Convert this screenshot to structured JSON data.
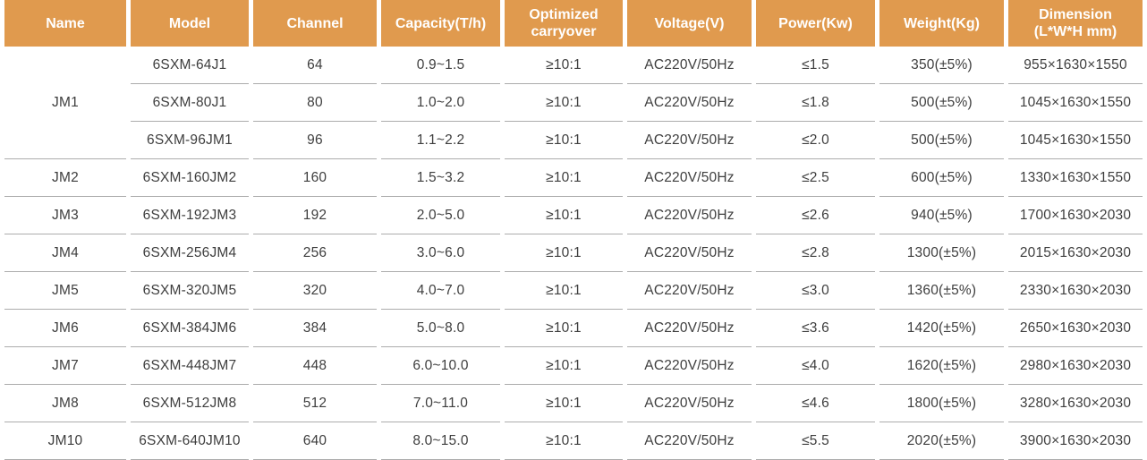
{
  "colors": {
    "header_bg": "#E09A4E",
    "header_text": "#FFFFFF",
    "body_text": "#3E3E3E",
    "row_separator": "#ACACAC",
    "background": "#FFFFFF"
  },
  "table": {
    "columns": [
      {
        "key": "name",
        "label": "Name"
      },
      {
        "key": "model",
        "label": "Model"
      },
      {
        "key": "channel",
        "label": "Channel"
      },
      {
        "key": "capacity",
        "label": "Capacity(T/h)"
      },
      {
        "key": "carryover",
        "label": "Optimized\ncarryover"
      },
      {
        "key": "voltage",
        "label": "Voltage(V)"
      },
      {
        "key": "power",
        "label": "Power(Kw)"
      },
      {
        "key": "weight",
        "label": "Weight(Kg)"
      },
      {
        "key": "dimension",
        "label": "Dimension\n(L*W*H mm)"
      }
    ],
    "groups": [
      {
        "name": "JM1",
        "rows": [
          {
            "model": "6SXM-64J1",
            "channel": "64",
            "capacity": "0.9~1.5",
            "carryover": "≥10:1",
            "voltage": "AC220V/50Hz",
            "power": "≤1.5",
            "weight": "350(±5%)",
            "dimension": "955×1630×1550"
          },
          {
            "model": "6SXM-80J1",
            "channel": "80",
            "capacity": "1.0~2.0",
            "carryover": "≥10:1",
            "voltage": "AC220V/50Hz",
            "power": "≤1.8",
            "weight": "500(±5%)",
            "dimension": "1045×1630×1550"
          },
          {
            "model": "6SXM-96JM1",
            "channel": "96",
            "capacity": "1.1~2.2",
            "carryover": "≥10:1",
            "voltage": "AC220V/50Hz",
            "power": "≤2.0",
            "weight": "500(±5%)",
            "dimension": "1045×1630×1550"
          }
        ]
      },
      {
        "name": "JM2",
        "rows": [
          {
            "model": "6SXM-160JM2",
            "channel": "160",
            "capacity": "1.5~3.2",
            "carryover": "≥10:1",
            "voltage": "AC220V/50Hz",
            "power": "≤2.5",
            "weight": "600(±5%)",
            "dimension": "1330×1630×1550"
          }
        ]
      },
      {
        "name": "JM3",
        "rows": [
          {
            "model": "6SXM-192JM3",
            "channel": "192",
            "capacity": "2.0~5.0",
            "carryover": "≥10:1",
            "voltage": "AC220V/50Hz",
            "power": "≤2.6",
            "weight": "940(±5%)",
            "dimension": "1700×1630×2030"
          }
        ]
      },
      {
        "name": "JM4",
        "rows": [
          {
            "model": "6SXM-256JM4",
            "channel": "256",
            "capacity": "3.0~6.0",
            "carryover": "≥10:1",
            "voltage": "AC220V/50Hz",
            "power": "≤2.8",
            "weight": "1300(±5%)",
            "dimension": "2015×1630×2030"
          }
        ]
      },
      {
        "name": "JM5",
        "rows": [
          {
            "model": "6SXM-320JM5",
            "channel": "320",
            "capacity": "4.0~7.0",
            "carryover": "≥10:1",
            "voltage": "AC220V/50Hz",
            "power": "≤3.0",
            "weight": "1360(±5%)",
            "dimension": "2330×1630×2030"
          }
        ]
      },
      {
        "name": "JM6",
        "rows": [
          {
            "model": "6SXM-384JM6",
            "channel": "384",
            "capacity": "5.0~8.0",
            "carryover": "≥10:1",
            "voltage": "AC220V/50Hz",
            "power": "≤3.6",
            "weight": "1420(±5%)",
            "dimension": "2650×1630×2030"
          }
        ]
      },
      {
        "name": "JM7",
        "rows": [
          {
            "model": "6SXM-448JM7",
            "channel": "448",
            "capacity": "6.0~10.0",
            "carryover": "≥10:1",
            "voltage": "AC220V/50Hz",
            "power": "≤4.0",
            "weight": "1620(±5%)",
            "dimension": "2980×1630×2030"
          }
        ]
      },
      {
        "name": "JM8",
        "rows": [
          {
            "model": "6SXM-512JM8",
            "channel": "512",
            "capacity": "7.0~11.0",
            "carryover": "≥10:1",
            "voltage": "AC220V/50Hz",
            "power": "≤4.6",
            "weight": "1800(±5%)",
            "dimension": "3280×1630×2030"
          }
        ]
      },
      {
        "name": "JM10",
        "rows": [
          {
            "model": "6SXM-640JM10",
            "channel": "640",
            "capacity": "8.0~15.0",
            "carryover": "≥10:1",
            "voltage": "AC220V/50Hz",
            "power": "≤5.5",
            "weight": "2020(±5%)",
            "dimension": "3900×1630×2030"
          }
        ]
      }
    ]
  }
}
